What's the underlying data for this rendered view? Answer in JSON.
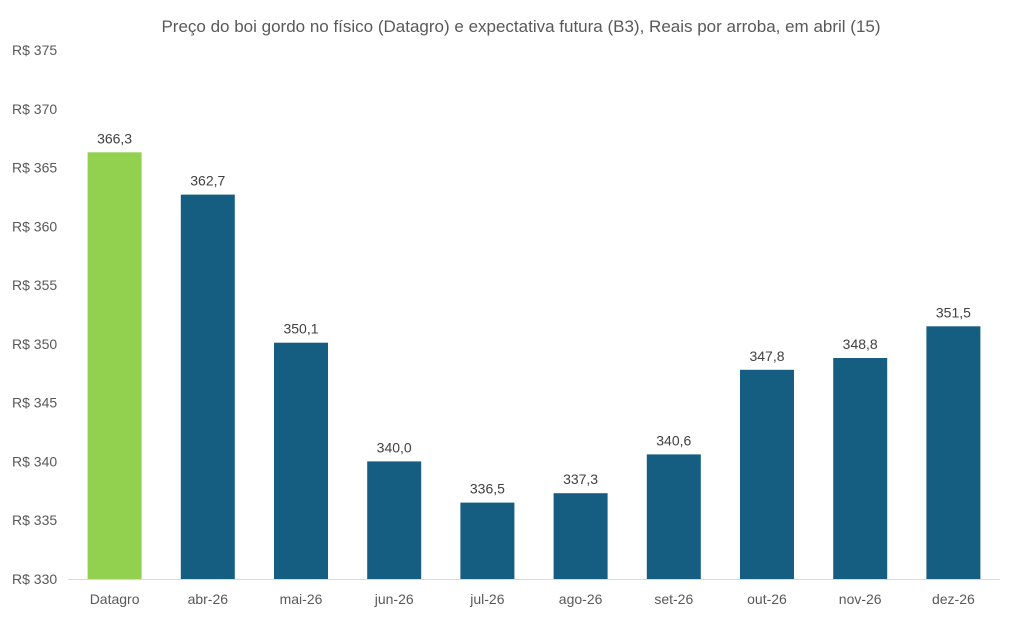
{
  "chart_data": {
    "type": "bar",
    "title": "Preço do boi gordo no físico (Datagro)  e expectativa futura (B3), Reais por arroba, em abril (15)",
    "xlabel": "",
    "ylabel": "",
    "categories": [
      "Datagro",
      "abr-26",
      "mai-26",
      "jun-26",
      "jul-26",
      "ago-26",
      "set-26",
      "out-26",
      "nov-26",
      "dez-26"
    ],
    "values": [
      366.3,
      362.7,
      350.1,
      340.0,
      336.5,
      337.3,
      340.6,
      347.8,
      348.8,
      351.5
    ],
    "value_labels": [
      "366,3",
      "362,7",
      "350,1",
      "340,0",
      "336,5",
      "337,3",
      "340,6",
      "347,8",
      "348,8",
      "351,5"
    ],
    "ylim": [
      330,
      375
    ],
    "yticks": [
      330,
      335,
      340,
      345,
      350,
      355,
      360,
      365,
      370,
      375
    ],
    "ytick_labels": [
      "R$ 330",
      "R$ 335",
      "R$ 340",
      "R$ 345",
      "R$ 350",
      "R$ 355",
      "R$ 360",
      "R$ 365",
      "R$ 370",
      "R$ 375"
    ],
    "grid": false,
    "legend": "none",
    "colors": {
      "highlight": "#92d050",
      "bars": "#155e82",
      "axis": "#d9d9d9",
      "text": "#595959"
    }
  }
}
